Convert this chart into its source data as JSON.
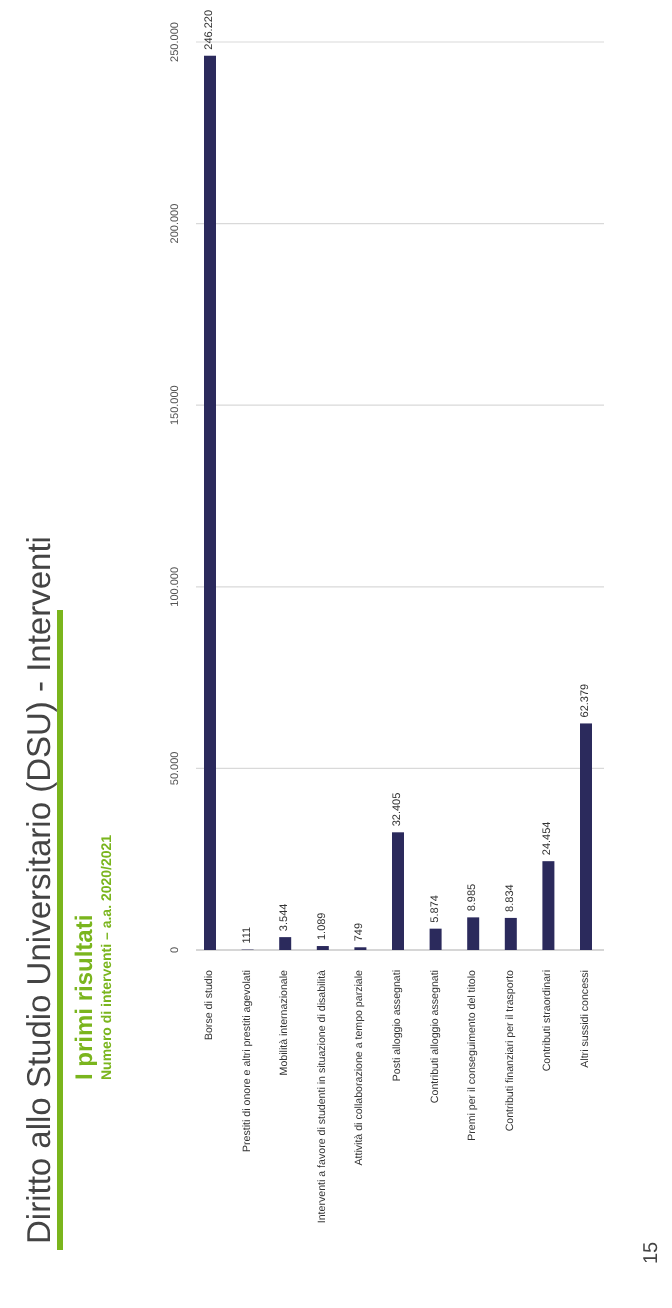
{
  "chart_data": {
    "type": "bar",
    "title": "Diritto allo Studio Universitario (DSU) - Interventi",
    "subtitle": "I primi risultati",
    "annotations": [
      "Numero di interventi – a.a. 2020/2021",
      "15"
    ],
    "categories": [
      "Borse di studio",
      "Prestiti di onore e altri prestiti agevolati",
      "Mobilità internazionale",
      "Interventi a favore di studenti in situazione di disabilità",
      "Attività di collaborazione a tempo parziale",
      "Posti alloggio assegnati",
      "Contributi alloggio assegnati",
      "Premi per il conseguimento del titolo",
      "Contributi finanziari per il trasporto",
      "Contributi straordinari",
      "Altri sussidi concessi"
    ],
    "values": [
      246220,
      111,
      3544,
      1089,
      749,
      32405,
      5874,
      8985,
      8834,
      24454,
      62379
    ],
    "value_labels": [
      "246.220",
      "111",
      "3.544",
      "1.089",
      "749",
      "32.405",
      "5.874",
      "8.985",
      "8.834",
      "24.454",
      "62.379"
    ],
    "color": "#2b2a5c",
    "ylim": [
      0,
      250000
    ],
    "yticks": [
      0,
      {
        "value": 50000,
        "label": "50.000"
      },
      {
        "value": 100000,
        "label": "100.000"
      },
      {
        "value": 150000,
        "label": "150.000"
      },
      {
        "value": 200000,
        "label": "200.000"
      },
      {
        "value": 250000,
        "label": "250.000"
      }
    ],
    "grid": "y"
  }
}
